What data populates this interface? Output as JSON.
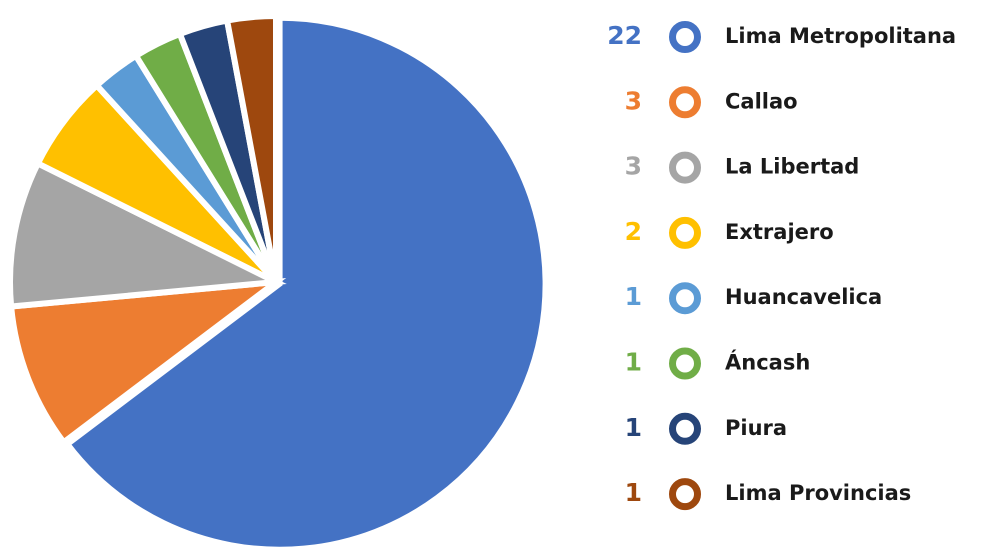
{
  "chart_data": {
    "type": "pie",
    "categories": [
      "Lima Metropolitana",
      "Callao",
      "La Libertad",
      "Extrajero",
      "Huancavelica",
      "Áncash",
      "Piura",
      "Lima Provincias"
    ],
    "values": [
      22,
      3,
      3,
      2,
      1,
      1,
      1,
      1
    ],
    "colors": [
      "#4472c4",
      "#ed7d31",
      "#a5a5a5",
      "#ffc000",
      "#5b9bd5",
      "#70ad47",
      "#264478",
      "#9e480e"
    ]
  }
}
